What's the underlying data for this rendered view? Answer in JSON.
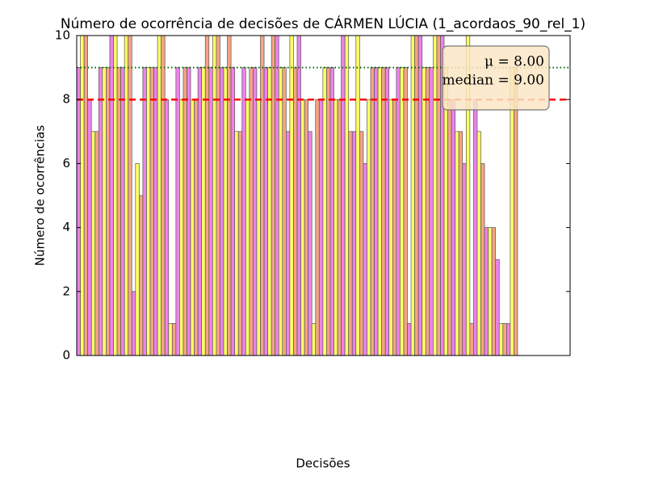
{
  "chart_data": {
    "type": "bar",
    "title": "Número de ocorrência de decisões de CÁRMEN LÚCIA (1_acordaos_90_rel_1)",
    "xlabel": "Decisões",
    "ylabel": "Número de ocorrências",
    "color_cycle": [
      "#ee82ee",
      "#ffff66",
      "#f4a582"
    ],
    "categories": [
      null,
      null,
      null,
      null,
      null,
      null,
      null,
      null,
      null,
      null,
      null,
      null,
      null,
      null,
      null,
      null,
      null,
      null,
      null,
      null,
      null,
      null,
      null,
      null,
      null,
      null,
      null,
      null,
      null,
      null,
      null,
      null,
      null,
      null,
      null,
      null,
      null,
      null,
      null,
      null,
      null,
      null,
      null,
      null,
      null,
      null,
      null,
      null,
      null,
      null,
      null,
      null,
      null,
      null,
      null,
      null,
      null,
      null,
      null,
      null,
      null,
      null,
      null,
      null,
      null,
      null,
      null,
      null,
      null,
      null,
      null,
      null,
      null,
      null,
      null,
      null,
      null,
      null,
      null,
      null,
      null,
      null,
      null,
      null,
      null,
      null,
      null,
      null,
      null,
      null,
      null,
      null,
      null,
      null,
      null,
      null,
      null,
      null,
      null,
      null,
      null,
      null,
      null,
      null,
      null,
      null,
      null,
      null,
      null,
      null,
      null,
      null,
      null,
      null,
      null,
      null,
      null,
      null,
      null,
      null
    ],
    "values": [
      9,
      10,
      10,
      8,
      7,
      7,
      9,
      9,
      9,
      10,
      10,
      9,
      9,
      10,
      10,
      2,
      6,
      5,
      9,
      9,
      9,
      9,
      10,
      10,
      8,
      1,
      1,
      9,
      8,
      9,
      9,
      8,
      8,
      9,
      9,
      10,
      9,
      10,
      10,
      9,
      9,
      10,
      9,
      7,
      7,
      9,
      8,
      9,
      9,
      8,
      10,
      9,
      9,
      10,
      10,
      9,
      9,
      7,
      10,
      9,
      10,
      8,
      8,
      7,
      1,
      8,
      8,
      9,
      9,
      9,
      8,
      8,
      10,
      10,
      7,
      7,
      10,
      7,
      6,
      8,
      9,
      9,
      9,
      9,
      9,
      8,
      8,
      9,
      9,
      9,
      1,
      10,
      10,
      10,
      9,
      9,
      9,
      10,
      10,
      10,
      9,
      8,
      8,
      7,
      7,
      6,
      10,
      1,
      8,
      7,
      6,
      4,
      4,
      4,
      3,
      1,
      1,
      1,
      9,
      9
    ],
    "mean": {
      "value": 8,
      "label": "μ = 8.00",
      "color": "#ff0000"
    },
    "median": {
      "value": 9,
      "label": "median = 9.00",
      "color": "#006400"
    },
    "ylim": [
      0,
      10
    ],
    "yticks": [
      0,
      2,
      4,
      6,
      8,
      10
    ]
  }
}
